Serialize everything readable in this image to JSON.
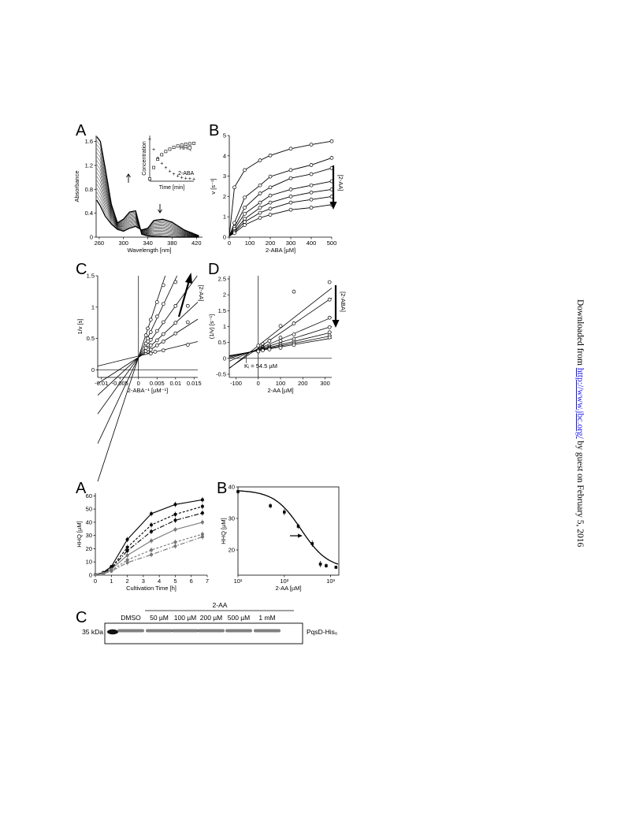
{
  "sidebar": {
    "prefix": "Downloaded from ",
    "link": "http://www.jbc.org/",
    "suffix": " by guest on February 5, 2016"
  },
  "figure1": {
    "panelA": {
      "letter": "A",
      "chart_data": {
        "type": "line",
        "xlabel": "Wavelength [nm]",
        "ylabel": "Absorbance",
        "xlim": [
          255,
          430
        ],
        "ylim": [
          0,
          1.7
        ],
        "xticks": [
          "260",
          "300",
          "340",
          "380",
          "420"
        ],
        "yticks": [
          "0",
          "0.4",
          "0.8",
          "1.2",
          "1.6"
        ],
        "series_count": 17,
        "first_spectrum": {
          "x": [
            256,
            262,
            270,
            280,
            290,
            300,
            310,
            320,
            330,
            340,
            360,
            380,
            400,
            425
          ],
          "y": [
            1.68,
            1.6,
            1.15,
            0.55,
            0.24,
            0.3,
            0.42,
            0.44,
            0.05,
            0.02,
            0.01,
            0.0,
            0.0,
            0.0
          ]
        },
        "last_spectrum": {
          "x": [
            256,
            262,
            270,
            280,
            290,
            300,
            310,
            320,
            330,
            340,
            350,
            365,
            380,
            400,
            425
          ],
          "y": [
            0.62,
            0.52,
            0.35,
            0.22,
            0.13,
            0.1,
            0.15,
            0.18,
            0.12,
            0.15,
            0.28,
            0.3,
            0.25,
            0.12,
            0.02
          ]
        },
        "inset": {
          "xlabel": "Time [min]",
          "ylabel": "Concentration",
          "series": [
            {
              "name": "HHQ",
              "values": [
                0.05,
                0.3,
                0.48,
                0.58,
                0.65,
                0.7,
                0.74,
                0.77,
                0.79,
                0.81,
                0.82,
                0.83
              ]
            },
            {
              "name": "2-ABA",
              "values": [
                0.92,
                0.7,
                0.52,
                0.4,
                0.3,
                0.22,
                0.16,
                0.12,
                0.09,
                0.07,
                0.06,
                0.05
              ]
            }
          ]
        }
      }
    },
    "panelB": {
      "letter": "B",
      "arrow_label": "[2-AA]",
      "chart_data": {
        "type": "line",
        "xlabel": "2-ABA [µM]",
        "ylabel": "v [s⁻¹]",
        "xlim": [
          0,
          500
        ],
        "ylim": [
          0,
          5
        ],
        "xticks": [
          "0",
          "100",
          "200",
          "300",
          "400",
          "500"
        ],
        "yticks": [
          "0",
          "1",
          "2",
          "3",
          "4",
          "5"
        ],
        "x": [
          0,
          25,
          75,
          150,
          200,
          300,
          400,
          500
        ],
        "series": [
          {
            "values": [
              0.05,
              2.45,
              3.3,
              3.78,
              4.02,
              4.35,
              4.55,
              4.72
            ]
          },
          {
            "values": [
              0.05,
              0.7,
              1.95,
              2.55,
              2.98,
              3.3,
              3.55,
              3.9
            ]
          },
          {
            "values": [
              0.05,
              0.5,
              1.45,
              2.15,
              2.45,
              2.9,
              3.1,
              3.4
            ]
          },
          {
            "values": [
              0.05,
              0.4,
              1.15,
              1.7,
              2.05,
              2.35,
              2.55,
              2.75
            ]
          },
          {
            "values": [
              0.05,
              0.3,
              0.9,
              1.45,
              1.7,
              2.0,
              2.2,
              2.35
            ]
          },
          {
            "values": [
              0.05,
              0.25,
              0.75,
              1.2,
              1.4,
              1.7,
              1.85,
              2.0
            ]
          },
          {
            "values": [
              0.05,
              0.2,
              0.6,
              0.95,
              1.1,
              1.35,
              1.45,
              1.6
            ]
          }
        ]
      }
    },
    "panelC": {
      "letter": "C",
      "arrow_label": "[2-AA]",
      "chart_data": {
        "type": "line",
        "xlabel": "2-ABA⁻¹ [µM⁻¹]",
        "ylabel": "1/v [s]",
        "xlim": [
          -0.011,
          0.016
        ],
        "ylim": [
          -0.12,
          1.5
        ],
        "xticks": [
          "-0.01",
          "-0.005",
          "0",
          "0.005",
          "0.01",
          "0.015"
        ],
        "yticks": [
          "0",
          "0.5",
          "1",
          "1.5"
        ],
        "lines": [
          {
            "intercept": 0.22,
            "slope": 14.5,
            "points_x": [
              0.0033,
              0.0045,
              0.0067,
              0.0133
            ],
            "points_y": [
              0.26,
              0.29,
              0.31,
              0.4
            ]
          },
          {
            "intercept": 0.2,
            "slope": 38,
            "points_x": [
              0.002,
              0.0025,
              0.0033,
              0.005,
              0.0067,
              0.01,
              0.0133
            ],
            "points_y": [
              0.27,
              0.29,
              0.32,
              0.39,
              0.45,
              0.58,
              0.76
            ]
          },
          {
            "intercept": 0.2,
            "slope": 55,
            "points_x": [
              0.002,
              0.0025,
              0.0033,
              0.005,
              0.0067,
              0.01,
              0.0133
            ],
            "points_y": [
              0.3,
              0.33,
              0.39,
              0.47,
              0.57,
              0.75,
              1.02
            ]
          },
          {
            "intercept": 0.2,
            "slope": 82,
            "points_x": [
              0.002,
              0.0025,
              0.0033,
              0.005,
              0.0067,
              0.01
            ],
            "points_y": [
              0.35,
              0.4,
              0.48,
              0.62,
              0.76,
              1.02
            ]
          },
          {
            "intercept": 0.2,
            "slope": 125,
            "points_x": [
              0.002,
              0.0025,
              0.0033,
              0.005,
              0.0067,
              0.01
            ],
            "points_y": [
              0.42,
              0.5,
              0.6,
              0.85,
              1.05,
              1.4
            ]
          },
          {
            "intercept": 0.2,
            "slope": 180,
            "points_x": [
              0.002,
              0.0025,
              0.0033,
              0.005,
              0.0067
            ],
            "points_y": [
              0.55,
              0.66,
              0.8,
              1.08,
              1.35
            ]
          }
        ]
      }
    },
    "panelD": {
      "letter": "D",
      "arrow_label": "[2-ABA]",
      "ki_label": "Kᵢ = 54.5 µM",
      "chart_data": {
        "type": "line",
        "xlabel": "2-AA [µM]",
        "ylabel": "(1/v) [s⁻¹]",
        "xlim": [
          -130,
          330
        ],
        "ylim": [
          -0.6,
          2.6
        ],
        "xticks": [
          "-100",
          "0",
          "100",
          "200",
          "300"
        ],
        "yticks": [
          "-0.5",
          "0",
          "0.5",
          "1",
          "1.5",
          "2",
          "2.5"
        ],
        "lines": [
          {
            "intercept": 0.4,
            "slope": 0.0055,
            "points_x": [
              0,
              20,
              50,
              100,
              160,
              320
            ],
            "points_y": [
              0.4,
              0.45,
              0.55,
              1.02,
              2.1,
              2.4
            ]
          },
          {
            "intercept": 0.32,
            "slope": 0.0048,
            "points_x": [
              0,
              20,
              50,
              100,
              160,
              320
            ],
            "points_y": [
              0.25,
              0.35,
              0.55,
              0.65,
              1.1,
              1.85
            ]
          },
          {
            "intercept": 0.3,
            "slope": 0.003,
            "points_x": [
              0,
              20,
              50,
              100,
              160,
              320
            ],
            "points_y": [
              0.25,
              0.32,
              0.4,
              0.55,
              0.75,
              1.28
            ]
          },
          {
            "intercept": 0.28,
            "slope": 0.0022,
            "points_x": [
              0,
              20,
              50,
              100,
              160,
              320
            ],
            "points_y": [
              0.25,
              0.3,
              0.35,
              0.45,
              0.6,
              0.98
            ]
          },
          {
            "intercept": 0.26,
            "slope": 0.0017,
            "points_x": [
              0,
              20,
              50,
              100,
              160,
              320
            ],
            "points_y": [
              0.22,
              0.28,
              0.33,
              0.4,
              0.52,
              0.82
            ]
          },
          {
            "intercept": 0.25,
            "slope": 0.0014,
            "points_x": [
              0,
              20,
              50,
              100,
              160,
              320
            ],
            "points_y": [
              0.22,
              0.26,
              0.3,
              0.37,
              0.47,
              0.72
            ]
          },
          {
            "intercept": 0.24,
            "slope": 0.0012,
            "points_x": [
              0,
              20,
              50,
              100,
              160,
              320
            ],
            "points_y": [
              0.22,
              0.25,
              0.28,
              0.33,
              0.42,
              0.66
            ]
          }
        ]
      }
    }
  },
  "figure2": {
    "panelA": {
      "letter": "A",
      "chart_data": {
        "type": "line",
        "xlabel": "Cultivation Time [h]",
        "ylabel": "HHQ [µM]",
        "xlim": [
          0,
          7
        ],
        "ylim": [
          0,
          62
        ],
        "xticks": [
          "0",
          "1",
          "2",
          "3",
          "4",
          "5",
          "6",
          "7"
        ],
        "yticks": [
          "0",
          "10",
          "20",
          "30",
          "40",
          "50",
          "60"
        ],
        "x": [
          0,
          0.5,
          1,
          2,
          3.5,
          5,
          6.7
        ],
        "series": [
          {
            "values": [
              0.5,
              2,
              6.5,
              27,
              46.5,
              53.5,
              57
            ],
            "color": "#000000",
            "dash": ""
          },
          {
            "values": [
              0.5,
              1.8,
              5.5,
              21,
              38,
              46,
              52
            ],
            "color": "#000000",
            "dash": "3,2"
          },
          {
            "values": [
              0.5,
              1.6,
              5,
              18.5,
              33,
              41.5,
              47
            ],
            "color": "#000000",
            "dash": "6,2,1.5,2"
          },
          {
            "values": [
              0.5,
              1.4,
              4.5,
              15,
              26,
              34.5,
              40
            ],
            "color": "#777777",
            "dash": ""
          },
          {
            "values": [
              0.5,
              1.2,
              3.5,
              11.5,
              19,
              25,
              31
            ],
            "color": "#777777",
            "dash": "3,2"
          },
          {
            "values": [
              0.5,
              1,
              3,
              9.5,
              15.5,
              22,
              29
            ],
            "color": "#777777",
            "dash": "6,2,1.5,2"
          }
        ]
      }
    },
    "panelB": {
      "letter": "B",
      "chart_data": {
        "type": "line",
        "xlabel": "2-AA [µM]",
        "ylabel": "HHQ [µM]",
        "xscale": "log",
        "xlim": [
          10,
          1500
        ],
        "ylim": [
          12,
          40
        ],
        "xticks": [
          "10¹",
          "10²",
          "10³"
        ],
        "yticks": [
          "20",
          "30",
          "40"
        ],
        "x": [
          10,
          50,
          100,
          200,
          400,
          600,
          800,
          1300
        ],
        "values": [
          38.5,
          34,
          32,
          27.5,
          22,
          15.5,
          15,
          14.5
        ],
        "errors": [
          1,
          0.8,
          1,
          0.8,
          1,
          1,
          0.7,
          0.5
        ],
        "ic50_arrow_x": 200
      }
    },
    "panelC": {
      "letter": "C",
      "group_label": "2-AA",
      "lanes": [
        "DMSO",
        "50 µM",
        "100 µM",
        "200 µM",
        "500 µM",
        "1 mM"
      ],
      "marker": "35 kDa",
      "band_label": "PqsD-His₆"
    }
  }
}
